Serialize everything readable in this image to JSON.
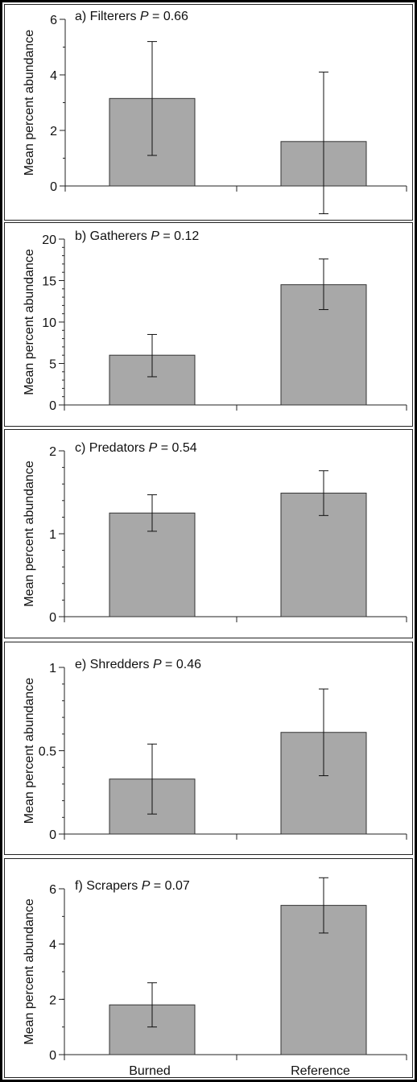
{
  "colors": {
    "bar_fill": "#a8a8a8",
    "bar_stroke": "#333333",
    "axis": "#222222",
    "border": "#000000",
    "panel_border": "#222222"
  },
  "chart_data": [
    {
      "type": "bar",
      "title": "a) Filterers",
      "p_label": "P",
      "p_value": "= 0.66",
      "ylabel": "Mean percent abundance",
      "categories": [
        "Burned",
        "Reference"
      ],
      "values": [
        3.15,
        1.6
      ],
      "error_low": [
        1.1,
        -1.0
      ],
      "error_high": [
        5.2,
        4.1
      ],
      "ylim": [
        0,
        6
      ],
      "yticks": [
        0,
        2,
        4,
        6
      ],
      "ytick_labels": [
        "0",
        "2",
        "4",
        "6"
      ],
      "minor_step": 1,
      "grid": false
    },
    {
      "type": "bar",
      "title": "b) Gatherers",
      "p_label": "P",
      "p_value": "= 0.12",
      "ylabel": "Mean percent abundance",
      "categories": [
        "Burned",
        "Reference"
      ],
      "values": [
        6.0,
        14.5
      ],
      "error_low": [
        3.4,
        11.5
      ],
      "error_high": [
        8.5,
        17.6
      ],
      "ylim": [
        0,
        20
      ],
      "yticks": [
        0,
        5,
        10,
        15,
        20
      ],
      "ytick_labels": [
        "0",
        "5",
        "10",
        "15",
        "20"
      ],
      "minor_step": 1,
      "grid": false
    },
    {
      "type": "bar",
      "title": "c) Predators",
      "p_label": "P",
      "p_value": "= 0.54",
      "ylabel": "Mean percent abundance",
      "categories": [
        "Burned",
        "Reference"
      ],
      "values": [
        1.25,
        1.49
      ],
      "error_low": [
        1.03,
        1.22
      ],
      "error_high": [
        1.47,
        1.76
      ],
      "ylim": [
        0,
        2
      ],
      "yticks": [
        0,
        1,
        2
      ],
      "ytick_labels": [
        "0",
        "1",
        "2"
      ],
      "minor_step": 0.2,
      "grid": false
    },
    {
      "type": "bar",
      "title": "e) Shredders",
      "p_label": "P",
      "p_value": "= 0.46",
      "ylabel": "Mean percent abundance",
      "categories": [
        "Burned",
        "Reference"
      ],
      "values": [
        0.33,
        0.61
      ],
      "error_low": [
        0.12,
        0.35
      ],
      "error_high": [
        0.54,
        0.87
      ],
      "ylim": [
        0,
        1
      ],
      "yticks": [
        0,
        0.5,
        1
      ],
      "ytick_labels": [
        "0",
        "0.5",
        "1"
      ],
      "minor_step": 0.1,
      "grid": false
    },
    {
      "type": "bar",
      "title": "f) Scrapers",
      "p_label": "P",
      "p_value": "= 0.07",
      "ylabel": "Mean percent abundance",
      "categories": [
        "Burned",
        "Reference"
      ],
      "values": [
        1.8,
        5.4
      ],
      "error_low": [
        1.0,
        4.4
      ],
      "error_high": [
        2.6,
        6.4
      ],
      "ylim": [
        0,
        6
      ],
      "yticks": [
        0,
        2,
        4,
        6
      ],
      "ytick_labels": [
        "0",
        "2",
        "4",
        "6"
      ],
      "minor_step": 1,
      "grid": false
    }
  ],
  "xaxis": {
    "labels": [
      "Burned",
      "Reference"
    ]
  }
}
